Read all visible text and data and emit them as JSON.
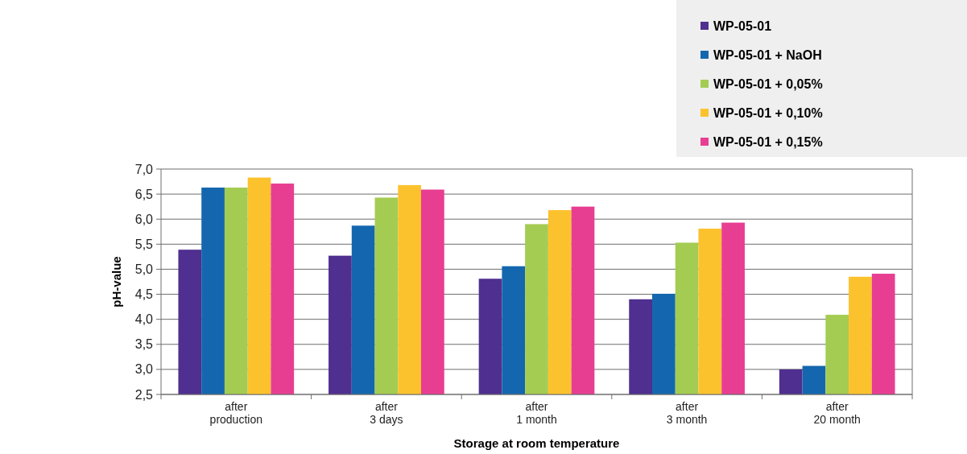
{
  "chart_data": {
    "type": "bar",
    "xlabel": "Storage at room temperature",
    "ylabel": "pH-value",
    "categories": [
      "after\nproduction",
      "after\n3 days",
      "after\n1 month",
      "after\n3 month",
      "after\n20 month"
    ],
    "series": [
      {
        "name": "WP-05-01",
        "color": "#4f2f8f",
        "values": [
          5.39,
          5.27,
          4.81,
          4.4,
          3.0
        ]
      },
      {
        "name": "WP-05-01 + NaOH",
        "color": "#1467ae",
        "values": [
          6.63,
          5.87,
          5.06,
          4.51,
          3.07
        ]
      },
      {
        "name": "WP-05-01 + 0,05%",
        "color": "#a4cc52",
        "values": [
          6.63,
          6.43,
          5.9,
          5.53,
          4.09
        ]
      },
      {
        "name": "WP-05-01 + 0,10%",
        "color": "#fcc22e",
        "values": [
          6.83,
          6.68,
          6.18,
          5.81,
          4.85
        ]
      },
      {
        "name": "WP-05-01 + 0,15%",
        "color": "#e83e92",
        "values": [
          6.71,
          6.59,
          6.25,
          5.93,
          4.91
        ]
      }
    ],
    "ylim": [
      2.5,
      7.0
    ],
    "yticks": [
      {
        "value": 2.5,
        "label": "2,5"
      },
      {
        "value": 3.0,
        "label": "3,0"
      },
      {
        "value": 3.5,
        "label": "3,5"
      },
      {
        "value": 4.0,
        "label": "4,0"
      },
      {
        "value": 4.5,
        "label": "4,5"
      },
      {
        "value": 5.0,
        "label": "5,0"
      },
      {
        "value": 5.5,
        "label": "5,5"
      },
      {
        "value": 6.0,
        "label": "6,0"
      },
      {
        "value": 6.5,
        "label": "6,5"
      },
      {
        "value": 7.0,
        "label": "7,0"
      }
    ],
    "grid": "y",
    "legend": "top right"
  }
}
